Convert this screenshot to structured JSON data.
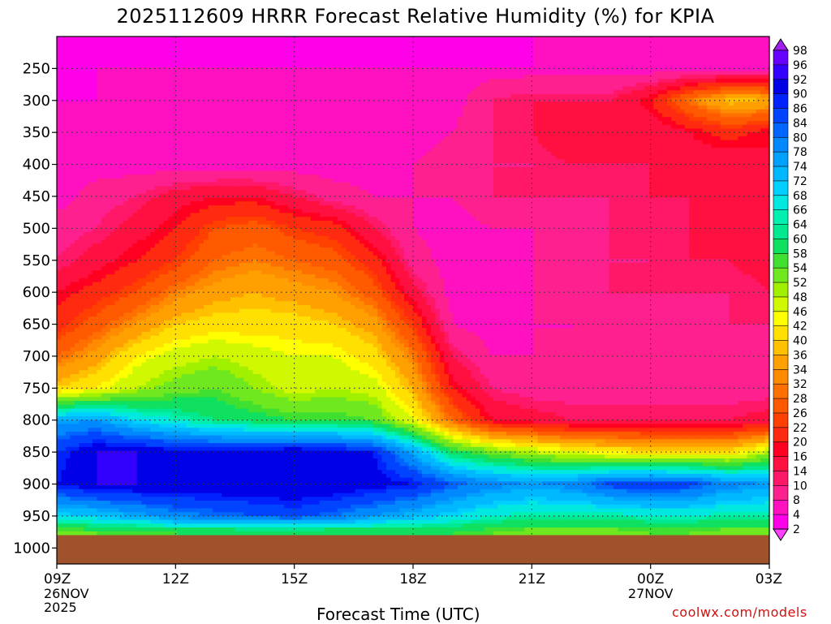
{
  "header": {
    "title": "2025112609 HRRR Forecast Relative Humidity (%) for KPIA"
  },
  "footer": {
    "x_axis_title": "Forecast Time (UTC)",
    "credit": "coolwx.com/models"
  },
  "chart_data": {
    "type": "heatmap",
    "title": "2025112609 HRRR Forecast Relative Humidity (%) for KPIA",
    "xlabel": "Forecast Time (UTC)",
    "ylabel": "",
    "x_ticks": [
      {
        "label": "09Z",
        "sub": [
          "26NOV",
          "2025"
        ]
      },
      {
        "label": "12Z",
        "sub": []
      },
      {
        "label": "15Z",
        "sub": []
      },
      {
        "label": "18Z",
        "sub": []
      },
      {
        "label": "21Z",
        "sub": []
      },
      {
        "label": "00Z",
        "sub": [
          "27NOV"
        ]
      },
      {
        "label": "03Z",
        "sub": []
      }
    ],
    "x": [
      "09Z",
      "10Z",
      "11Z",
      "12Z",
      "13Z",
      "14Z",
      "15Z",
      "16Z",
      "17Z",
      "18Z",
      "19Z",
      "20Z",
      "21Z",
      "22Z",
      "23Z",
      "00Z",
      "01Z",
      "02Z",
      "03Z"
    ],
    "y_ticks": [
      250,
      300,
      350,
      400,
      450,
      500,
      550,
      600,
      650,
      700,
      750,
      800,
      850,
      900,
      950,
      1000
    ],
    "y_levels": [
      200,
      250,
      300,
      350,
      400,
      450,
      500,
      550,
      600,
      650,
      700,
      750,
      800,
      850,
      900,
      950,
      975
    ],
    "ylim": [
      200,
      1025
    ],
    "y_inverted": true,
    "grid": true,
    "z_unit": "%",
    "values": [
      [
        6,
        6,
        6,
        4,
        4,
        4,
        4,
        4,
        4,
        6,
        6,
        6,
        8,
        8,
        8,
        8,
        8,
        8,
        8
      ],
      [
        6,
        8,
        8,
        8,
        8,
        8,
        8,
        8,
        8,
        8,
        8,
        8,
        8,
        8,
        8,
        8,
        8,
        8,
        8
      ],
      [
        8,
        8,
        8,
        8,
        8,
        8,
        8,
        8,
        8,
        8,
        8,
        14,
        16,
        16,
        16,
        22,
        34,
        42,
        40
      ],
      [
        8,
        8,
        8,
        8,
        8,
        8,
        8,
        8,
        8,
        8,
        10,
        14,
        16,
        20,
        18,
        16,
        20,
        24,
        20
      ],
      [
        8,
        8,
        8,
        8,
        8,
        8,
        8,
        8,
        8,
        10,
        12,
        14,
        14,
        16,
        16,
        16,
        18,
        16,
        20
      ],
      [
        8,
        12,
        14,
        18,
        20,
        20,
        16,
        12,
        10,
        10,
        10,
        14,
        14,
        14,
        14,
        16,
        16,
        16,
        16
      ],
      [
        12,
        14,
        18,
        22,
        28,
        30,
        26,
        24,
        16,
        10,
        8,
        10,
        10,
        12,
        14,
        14,
        16,
        16,
        18
      ],
      [
        14,
        18,
        22,
        26,
        32,
        34,
        32,
        30,
        24,
        12,
        8,
        8,
        10,
        12,
        14,
        14,
        16,
        16,
        18
      ],
      [
        20,
        24,
        28,
        34,
        38,
        40,
        38,
        36,
        30,
        18,
        8,
        8,
        10,
        12,
        14,
        14,
        14,
        14,
        16
      ],
      [
        24,
        30,
        36,
        42,
        44,
        44,
        44,
        42,
        38,
        26,
        10,
        8,
        10,
        10,
        12,
        12,
        12,
        14,
        14
      ],
      [
        32,
        38,
        46,
        50,
        52,
        50,
        48,
        48,
        44,
        34,
        16,
        10,
        10,
        10,
        12,
        12,
        12,
        12,
        12
      ],
      [
        42,
        46,
        52,
        56,
        58,
        54,
        50,
        52,
        50,
        40,
        22,
        14,
        12,
        12,
        12,
        12,
        12,
        12,
        12
      ],
      [
        78,
        80,
        72,
        68,
        64,
        62,
        60,
        60,
        58,
        48,
        32,
        20,
        18,
        16,
        16,
        16,
        16,
        16,
        18
      ],
      [
        90,
        96,
        96,
        94,
        94,
        94,
        96,
        94,
        92,
        78,
        62,
        56,
        52,
        48,
        46,
        44,
        44,
        44,
        52
      ],
      [
        92,
        96,
        96,
        96,
        96,
        96,
        96,
        96,
        94,
        92,
        86,
        82,
        80,
        82,
        88,
        90,
        88,
        82,
        80
      ],
      [
        72,
        74,
        78,
        82,
        84,
        86,
        88,
        84,
        80,
        76,
        72,
        68,
        66,
        66,
        66,
        68,
        68,
        66,
        66
      ],
      [
        56,
        58,
        58,
        60,
        60,
        60,
        60,
        60,
        60,
        60,
        60,
        58,
        56,
        56,
        56,
        58,
        58,
        56,
        56
      ]
    ],
    "colorbar": {
      "labels": [
        98,
        96,
        92,
        90,
        86,
        84,
        80,
        78,
        74,
        72,
        68,
        66,
        64,
        60,
        58,
        54,
        52,
        48,
        46,
        42,
        40,
        36,
        34,
        32,
        28,
        26,
        22,
        20,
        16,
        14,
        10,
        8,
        4,
        2
      ],
      "colors": [
        "#a01ef0",
        "#6600ff",
        "#3300ff",
        "#0000e6",
        "#0022ff",
        "#0044ff",
        "#0066ff",
        "#0088ff",
        "#00a0ff",
        "#00b8ff",
        "#00d0ff",
        "#00e8e0",
        "#00f0b0",
        "#00e890",
        "#10e060",
        "#40e030",
        "#70e820",
        "#a0f000",
        "#d0f800",
        "#ffff00",
        "#ffe000",
        "#ffc000",
        "#ffa000",
        "#ff8c00",
        "#ff7000",
        "#ff5a00",
        "#ff4000",
        "#ff2a10",
        "#ff0020",
        "#ff1040",
        "#ff1868",
        "#ff2090",
        "#ff10c0",
        "#ff00e8",
        "#ff40ff"
      ],
      "ground_color": "#a0522d"
    }
  }
}
